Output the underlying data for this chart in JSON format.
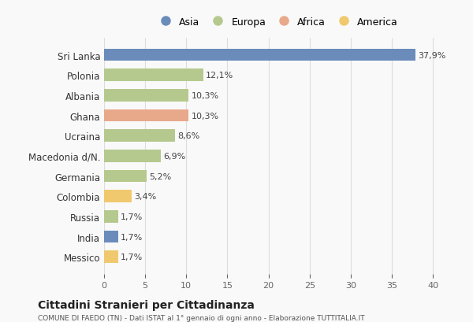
{
  "countries": [
    "Sri Lanka",
    "Polonia",
    "Albania",
    "Ghana",
    "Ucraina",
    "Macedonia d/N.",
    "Germania",
    "Colombia",
    "Russia",
    "India",
    "Messico"
  ],
  "values": [
    37.9,
    12.1,
    10.3,
    10.3,
    8.6,
    6.9,
    5.2,
    3.4,
    1.7,
    1.7,
    1.7
  ],
  "labels": [
    "37,9%",
    "12,1%",
    "10,3%",
    "10,3%",
    "8,6%",
    "6,9%",
    "5,2%",
    "3,4%",
    "1,7%",
    "1,7%",
    "1,7%"
  ],
  "colors": [
    "#6b8cba",
    "#b5c98e",
    "#b5c98e",
    "#e8a98a",
    "#b5c98e",
    "#b5c98e",
    "#b5c98e",
    "#f0c96e",
    "#b5c98e",
    "#6b8cba",
    "#f0c96e"
  ],
  "legend_labels": [
    "Asia",
    "Europa",
    "Africa",
    "America"
  ],
  "legend_colors": [
    "#6b8cba",
    "#b5c98e",
    "#e8a98a",
    "#f0c96e"
  ],
  "title": "Cittadini Stranieri per Cittadinanza",
  "subtitle": "COMUNE DI FAEDO (TN) - Dati ISTAT al 1° gennaio di ogni anno - Elaborazione TUTTITALIA.IT",
  "xlim": [
    0,
    42
  ],
  "xticks": [
    0,
    5,
    10,
    15,
    20,
    25,
    30,
    35,
    40
  ],
  "background_color": "#f9f9f9",
  "grid_color": "#dddddd"
}
